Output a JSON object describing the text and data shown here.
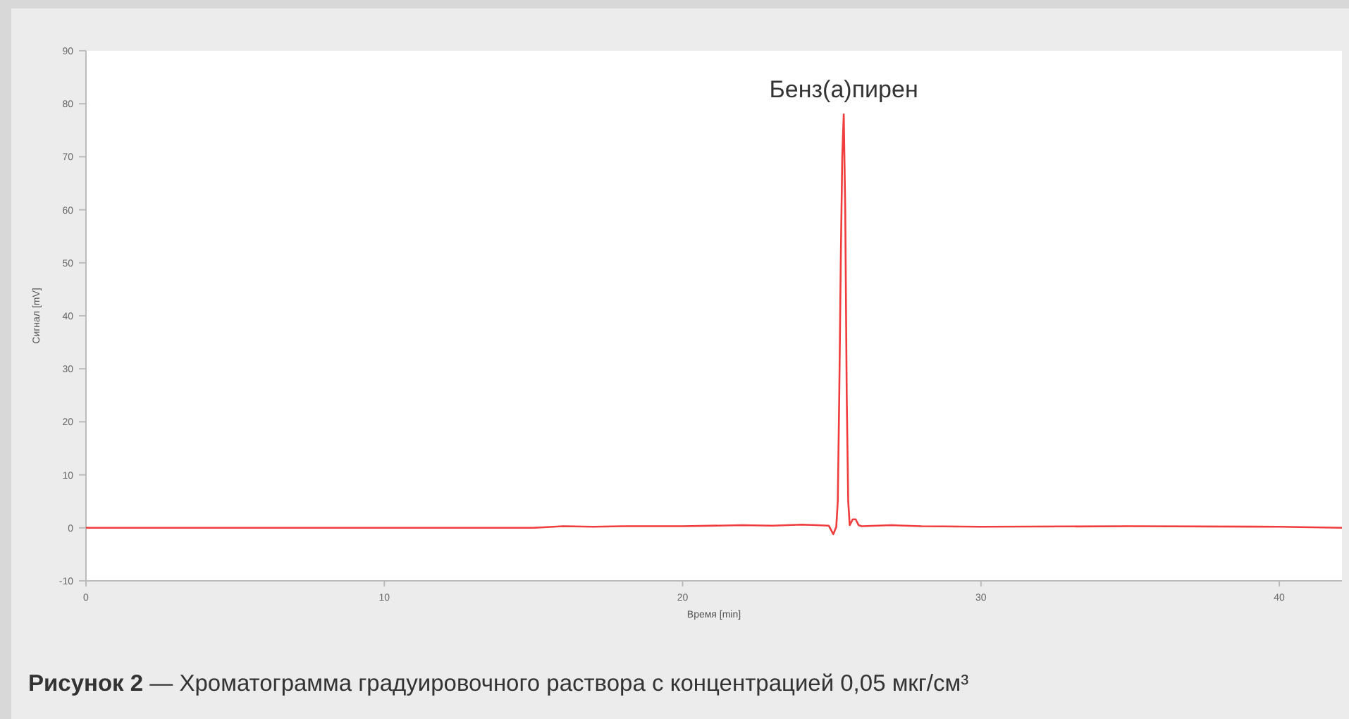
{
  "chart_data": {
    "type": "line",
    "title": "Рисунок 2 — Хроматограмма градуировочного раствора с концентрацией 0,05 мкг/см³",
    "xlabel": "Время [min]",
    "ylabel": "Сигнал [mV]",
    "x": [
      0,
      5,
      10,
      15,
      16,
      17,
      18,
      20,
      22,
      23,
      24,
      24.5,
      24.9,
      25.05,
      25.15,
      25.2,
      25.25,
      25.3,
      25.35,
      25.4,
      25.45,
      25.5,
      25.55,
      25.6,
      25.7,
      25.8,
      25.9,
      26,
      27,
      28,
      30,
      35,
      40,
      42.1
    ],
    "series": [
      {
        "color": "#f03c3c",
        "values": [
          0,
          0,
          0,
          0,
          0.3,
          0.2,
          0.3,
          0.3,
          0.5,
          0.4,
          0.6,
          0.5,
          0.4,
          -1.2,
          0.2,
          5,
          25,
          50,
          70,
          78,
          60,
          25,
          5,
          0.5,
          1.6,
          1.6,
          0.5,
          0.3,
          0.5,
          0.3,
          0.2,
          0.3,
          0.2,
          0
        ]
      }
    ],
    "xlim": [
      0,
      42.1
    ],
    "ylim": [
      -10,
      90
    ],
    "xticks": [
      0,
      10,
      20,
      30,
      40
    ],
    "yticks": [
      -10,
      0,
      10,
      20,
      30,
      40,
      50,
      60,
      70,
      80,
      90
    ],
    "grid": false,
    "marker": "none",
    "line_style": "solid",
    "annotations": [
      {
        "text": "Бенз(а)пирен",
        "x": 25.4,
        "y": 78
      }
    ]
  }
}
